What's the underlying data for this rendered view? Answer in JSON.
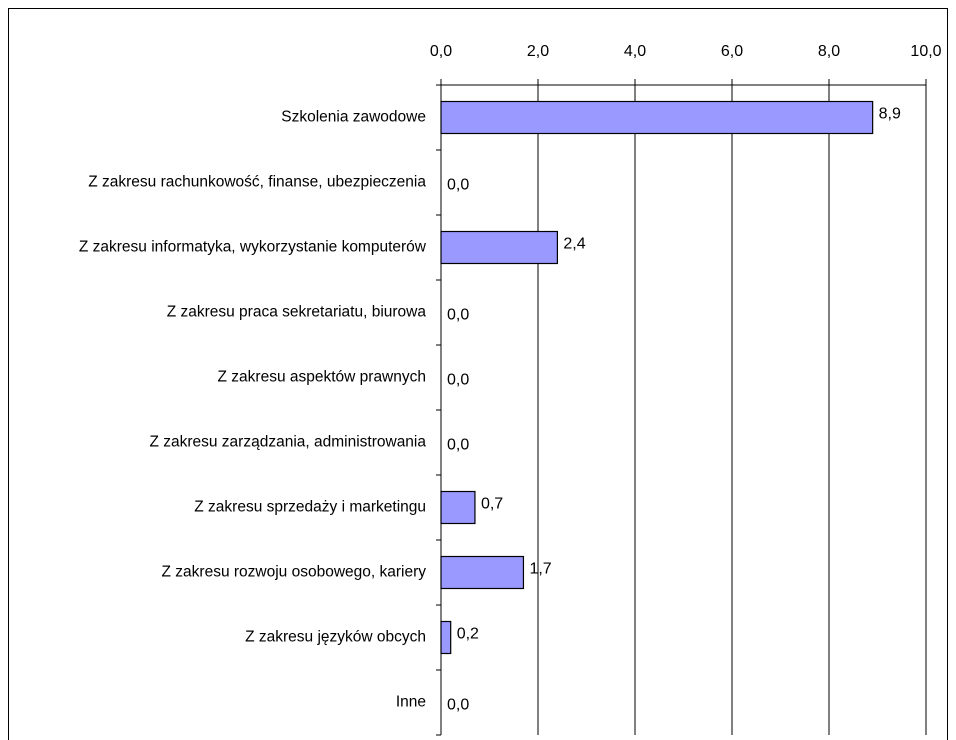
{
  "chart_data": {
    "type": "bar",
    "orientation": "horizontal",
    "categories": [
      "Szkolenia zawodowe",
      "Z zakresu rachunkowość, finanse, ubezpieczenia",
      "Z zakresu informatyka, wykorzystanie komputerów",
      "Z zakresu praca sekretariatu, biurowa",
      "Z zakresu aspektów prawnych",
      "Z zakresu zarządzania, administrowania",
      "Z zakresu sprzedaży i marketingu",
      "Z zakresu rozwoju osobowego, kariery",
      "Z zakresu języków obcych",
      "Inne"
    ],
    "values": [
      8.9,
      0.0,
      2.4,
      0.0,
      0.0,
      0.0,
      0.7,
      1.7,
      0.2,
      0.0
    ],
    "value_labels": [
      "8,9",
      "0,0",
      "2,4",
      "0,0",
      "0,0",
      "0,0",
      "0,7",
      "1,7",
      "0,2",
      "0,0"
    ],
    "color": "#9999ff",
    "xlim": [
      0,
      10
    ],
    "xticks": [
      {
        "value": 0,
        "label": "0,0"
      },
      {
        "value": 2,
        "label": "2,0"
      },
      {
        "value": 4,
        "label": "4,0"
      },
      {
        "value": 6,
        "label": "6,0"
      },
      {
        "value": 8,
        "label": "8,0"
      },
      {
        "value": 10,
        "label": "10,0"
      }
    ],
    "grid": true
  }
}
